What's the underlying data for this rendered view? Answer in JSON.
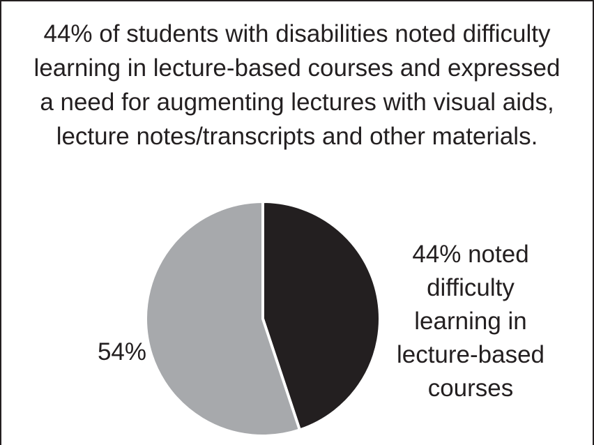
{
  "chart_data": {
    "type": "pie",
    "title": "44% of students with disabilities noted difficulty learning in lecture-based courses and expressed a need for augmenting lectures with visual aids, lecture notes/transcripts and other materials.",
    "values": [
      44,
      54
    ],
    "value_labels": [
      "44% noted difficulty learning in lecture-based courses",
      "54%"
    ],
    "colors": [
      "#231f20",
      "#a7a9ac"
    ]
  }
}
